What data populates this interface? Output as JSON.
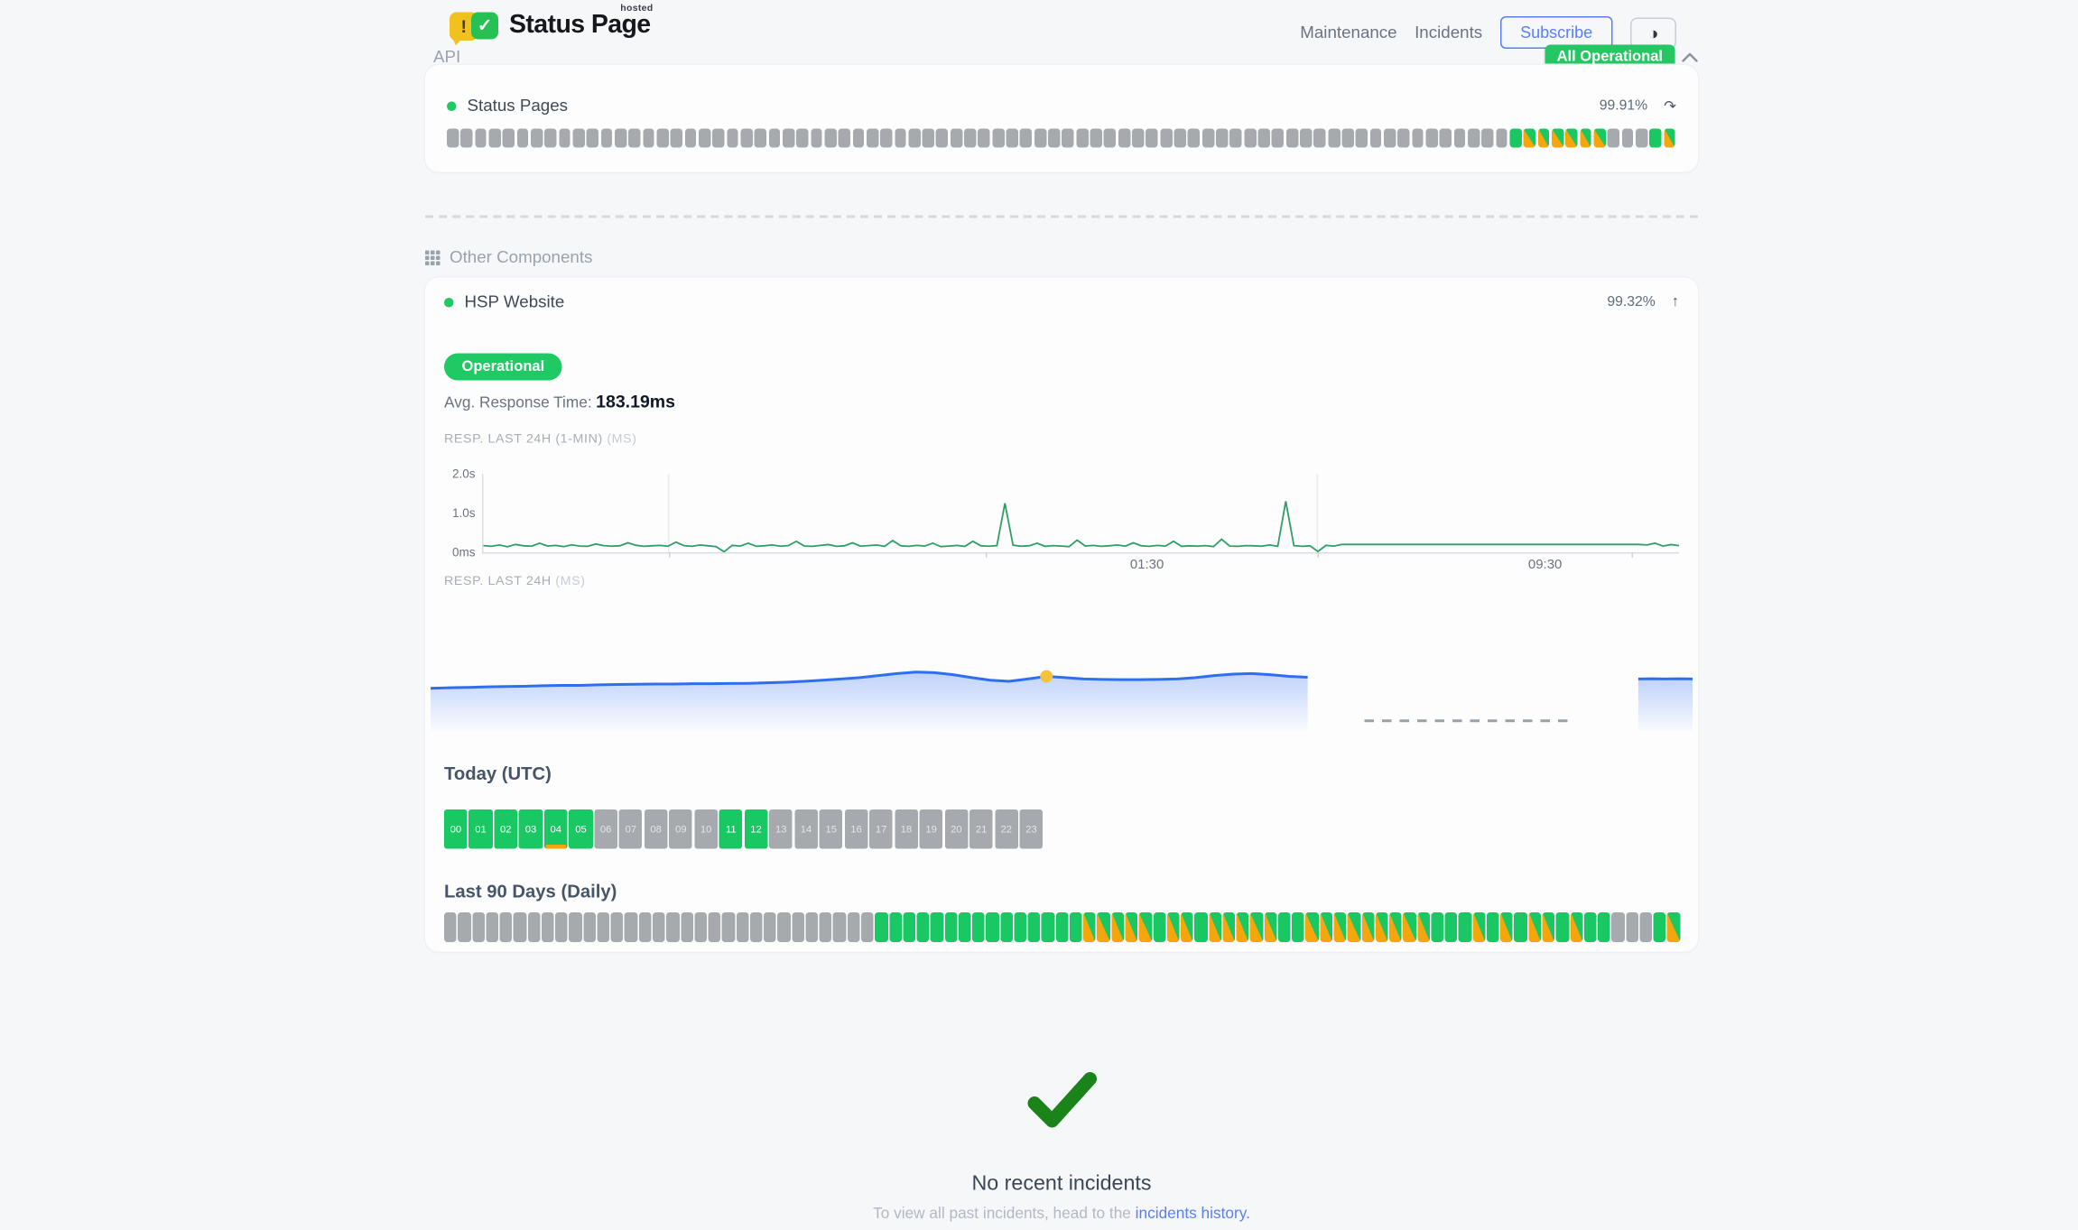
{
  "header": {
    "logo": {
      "title": "Status Page",
      "superscript": "hosted",
      "bubble_glyph": "!",
      "check_glyph": "✓"
    },
    "nav": [
      {
        "label": "Maintenance"
      },
      {
        "label": "Incidents"
      }
    ],
    "subscribe_label": "Subscribe",
    "theme_icon": "◑",
    "status_badge": {
      "label": "All Operational",
      "color": "#25c763"
    }
  },
  "api_section": {
    "title": "API",
    "component": {
      "name": "Status Pages",
      "uptime": "99.91%",
      "trend_icon": "↷"
    }
  },
  "other_section": {
    "title": "Other Components",
    "component": {
      "name": "HSP Website",
      "uptime": "99.32%",
      "trend_icon": "↑",
      "status_label": "Operational",
      "avg_response_label": "Avg. Response Time:",
      "avg_response_value": "183.19ms"
    }
  },
  "incidents": {
    "title": "No recent incidents",
    "caption_prefix": "To view all past incidents, head to the ",
    "link_label": "incidents history."
  },
  "colors": {
    "up_green": "#19c763",
    "nodata_gray": "#a6aaae",
    "degraded_orange": "#f6a60b",
    "line_green": "#2f9e68",
    "area_blue": "#2e6ff2",
    "marker_yellow": "#f6c23c",
    "link_blue": "#5b7ef5"
  },
  "chart_data": [
    {
      "id": "resp_last_24h_1min",
      "type": "line",
      "title": "RESP. LAST 24H (1-MIN)",
      "unit_label": "(MS)",
      "ylabel_ticks": [
        "2.0s",
        "1.0s",
        "0ms"
      ],
      "ylim": [
        0,
        2000
      ],
      "color": "#2f9e68",
      "gridlines_x": [
        0.155,
        0.6975
      ],
      "tickmarks_x": [
        0.155,
        0.42,
        0.6975,
        0.96
      ],
      "xticks": [
        {
          "label": "01:30",
          "x": 0.555
        },
        {
          "label": "09:30",
          "x": 0.888
        }
      ],
      "values": [
        170,
        150,
        185,
        140,
        200,
        165,
        155,
        230,
        160,
        175,
        145,
        190,
        160,
        150,
        210,
        170,
        155,
        165,
        240,
        180,
        150,
        165,
        175,
        155,
        260,
        170,
        150,
        185,
        165,
        145,
        15,
        175,
        160,
        230,
        150,
        165,
        185,
        155,
        170,
        280,
        160,
        150,
        175,
        195,
        150,
        165,
        240,
        155,
        170,
        185,
        150,
        300,
        165,
        150,
        175,
        160,
        230,
        145,
        160,
        175,
        150,
        280,
        165,
        155,
        170,
        1250,
        180,
        155,
        165,
        230,
        150,
        170,
        160,
        145,
        310,
        160,
        175,
        150,
        165,
        185,
        155,
        240,
        165,
        150,
        175,
        160,
        280,
        150,
        165,
        155,
        170,
        145,
        330,
        160,
        150,
        170,
        165,
        155,
        185,
        150,
        1300,
        170,
        150,
        165,
        20,
        175,
        160,
        200,
        200,
        200,
        200,
        200,
        200,
        200,
        200,
        200,
        200,
        200,
        200,
        200,
        200,
        200,
        200,
        200,
        200,
        200,
        200,
        200,
        200,
        200,
        200,
        200,
        200,
        200,
        200,
        200,
        200,
        200,
        200,
        200,
        200,
        200,
        200,
        200,
        200,
        185,
        230,
        160,
        195,
        170
      ]
    },
    {
      "id": "resp_last_24h_avg",
      "type": "area",
      "title": "RESP. LAST 24H",
      "unit_label": "(MS)",
      "color": "#2e6ff2",
      "ymax": 400,
      "segments": [
        {
          "x0": 0.0,
          "x1": 0.695,
          "values": [
            168,
            170,
            172,
            174,
            175,
            176,
            178,
            180,
            180,
            182,
            183,
            184,
            185,
            185,
            186,
            186,
            187,
            188,
            190,
            192,
            196,
            200,
            205,
            210,
            218,
            226,
            232,
            230,
            222,
            210,
            200,
            196,
            205,
            215,
            210,
            205,
            203,
            202,
            202,
            203,
            205,
            210,
            218,
            224,
            226,
            222,
            215,
            212
          ]
        },
        {
          "x0": 0.957,
          "x1": 1.0,
          "values": [
            205,
            206,
            205,
            206,
            205
          ]
        }
      ],
      "no_data_dash": {
        "x0": 0.74,
        "x1": 0.905,
        "y_value": 40
      },
      "marker": {
        "segment": 0,
        "index": 33,
        "color": "#f6c23c"
      }
    },
    {
      "id": "today_hours",
      "type": "heatmap",
      "title": "Today (UTC)",
      "cells": [
        {
          "label": "00",
          "status": "up"
        },
        {
          "label": "01",
          "status": "up"
        },
        {
          "label": "02",
          "status": "up"
        },
        {
          "label": "03",
          "status": "up"
        },
        {
          "label": "04",
          "status": "up",
          "underline": true
        },
        {
          "label": "05",
          "status": "up"
        },
        {
          "label": "06",
          "status": "nodata"
        },
        {
          "label": "07",
          "status": "nodata"
        },
        {
          "label": "08",
          "status": "nodata"
        },
        {
          "label": "09",
          "status": "nodata"
        },
        {
          "label": "10",
          "status": "nodata"
        },
        {
          "label": "11",
          "status": "up"
        },
        {
          "label": "12",
          "status": "up"
        },
        {
          "label": "13",
          "status": "nodata"
        },
        {
          "label": "14",
          "status": "nodata"
        },
        {
          "label": "15",
          "status": "nodata"
        },
        {
          "label": "16",
          "status": "nodata"
        },
        {
          "label": "17",
          "status": "nodata"
        },
        {
          "label": "18",
          "status": "nodata"
        },
        {
          "label": "19",
          "status": "nodata"
        },
        {
          "label": "20",
          "status": "nodata"
        },
        {
          "label": "21",
          "status": "nodata"
        },
        {
          "label": "22",
          "status": "nodata"
        },
        {
          "label": "23",
          "status": "nodata"
        }
      ]
    },
    {
      "id": "last_90_days",
      "type": "heatmap",
      "title": "Last 90 Days (Daily)",
      "statuses": "nnnnnnnnnnnnnnnnnnnnnnnnnnnnnnnuuuuuuuuuuuuuuudddddudduddddduuddddddddduuudududduduunnnud"
    },
    {
      "id": "status_pages_uptime_bars",
      "type": "heatmap",
      "statuses": "nnnnnnnnnnnnnnnnnnnnnnnnnnnnnnnnnnnnnnnnnnnnnnnnnnnnnnnnnnnnnnnnnnnnnnnnnnnnuddddddnnnud"
    }
  ]
}
